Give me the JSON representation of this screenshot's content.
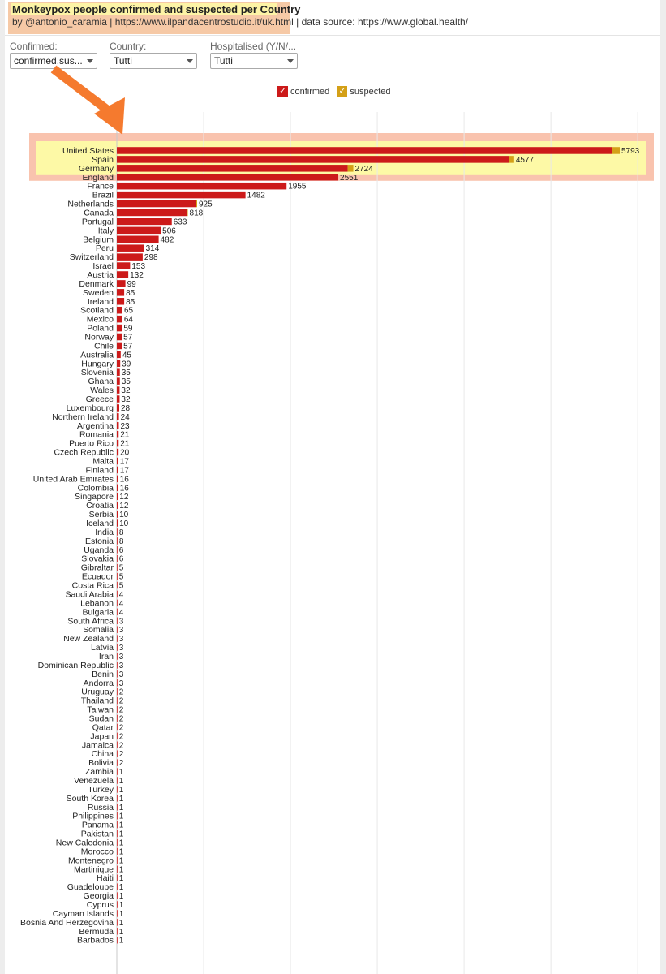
{
  "header": {
    "title": "Monkeypox people confirmed and suspected per Country",
    "subtitle": "by @antonio_caramia | https://www.ilpandacentrostudio.it/uk.html | data source: https://www.global.health/"
  },
  "filters": [
    {
      "label": "Confirmed:",
      "value": "confirmed,sus..."
    },
    {
      "label": "Country:",
      "value": "Tutti"
    },
    {
      "label": "Hospitalised (Y/N/...",
      "value": "Tutti"
    }
  ],
  "legend": [
    {
      "label": "confirmed",
      "color": "#cc1a1a",
      "checked": "✓"
    },
    {
      "label": "suspected",
      "color": "#d4a017",
      "checked": "✓"
    }
  ],
  "colors": {
    "confirmed": "#cc1a1a",
    "suspected": "#d4a017",
    "highlight": "#fdf9a6",
    "annotation": "#f57a2e"
  },
  "chart_data": {
    "type": "bar",
    "orientation": "horizontal",
    "stacked": true,
    "xlim": [
      0,
      6000
    ],
    "grid": true,
    "legend_position": "top",
    "highlighted_categories": [
      "United States",
      "Spain",
      "Germany"
    ],
    "categories": [
      "United States",
      "Spain",
      "Germany",
      "England",
      "France",
      "Brazil",
      "Netherlands",
      "Canada",
      "Portugal",
      "Italy",
      "Belgium",
      "Peru",
      "Switzerland",
      "Israel",
      "Austria",
      "Denmark",
      "Sweden",
      "Ireland",
      "Scotland",
      "Mexico",
      "Poland",
      "Norway",
      "Chile",
      "Australia",
      "Hungary",
      "Slovenia",
      "Ghana",
      "Wales",
      "Greece",
      "Luxembourg",
      "Northern Ireland",
      "Argentina",
      "Romania",
      "Puerto Rico",
      "Czech Republic",
      "Malta",
      "Finland",
      "United Arab Emirates",
      "Colombia",
      "Singapore",
      "Croatia",
      "Serbia",
      "Iceland",
      "India",
      "Estonia",
      "Uganda",
      "Slovakia",
      "Gibraltar",
      "Ecuador",
      "Costa Rica",
      "Saudi Arabia",
      "Lebanon",
      "Bulgaria",
      "South Africa",
      "Somalia",
      "New Zealand",
      "Latvia",
      "Iran",
      "Dominican Republic",
      "Benin",
      "Andorra",
      "Uruguay",
      "Thailand",
      "Taiwan",
      "Sudan",
      "Qatar",
      "Japan",
      "Jamaica",
      "China",
      "Bolivia",
      "Zambia",
      "Venezuela",
      "Turkey",
      "South Korea",
      "Russia",
      "Philippines",
      "Panama",
      "Pakistan",
      "New Caledonia",
      "Morocco",
      "Montenegro",
      "Martinique",
      "Haiti",
      "Guadeloupe",
      "Georgia",
      "Cyprus",
      "Cayman Islands",
      "Bosnia And Herzegovina",
      "Bermuda",
      "Barbados"
    ],
    "values": [
      5793,
      4577,
      2724,
      2551,
      1955,
      1482,
      925,
      818,
      633,
      506,
      482,
      314,
      298,
      153,
      132,
      99,
      85,
      85,
      65,
      64,
      59,
      57,
      57,
      45,
      39,
      35,
      35,
      32,
      32,
      28,
      24,
      23,
      21,
      21,
      20,
      17,
      17,
      16,
      16,
      12,
      12,
      10,
      10,
      8,
      8,
      6,
      6,
      5,
      5,
      5,
      4,
      4,
      4,
      3,
      3,
      3,
      3,
      3,
      3,
      3,
      3,
      2,
      2,
      2,
      2,
      2,
      2,
      2,
      2,
      2,
      1,
      1,
      1,
      1,
      1,
      1,
      1,
      1,
      1,
      1,
      1,
      1,
      1,
      1,
      1,
      1,
      1,
      1,
      1,
      1
    ],
    "series": [
      {
        "name": "confirmed",
        "values": [
          5707,
          4520,
          2659,
          2551,
          1955,
          1482,
          913,
          805,
          633,
          506,
          482,
          314,
          298,
          153,
          132,
          99,
          85,
          85,
          65,
          64,
          59,
          57,
          57,
          45,
          39,
          35,
          35,
          32,
          32,
          28,
          24,
          23,
          21,
          21,
          20,
          17,
          17,
          16,
          16,
          12,
          12,
          10,
          10,
          8,
          8,
          6,
          6,
          5,
          5,
          5,
          4,
          4,
          4,
          3,
          3,
          3,
          3,
          3,
          3,
          3,
          3,
          2,
          2,
          2,
          2,
          2,
          2,
          2,
          2,
          2,
          1,
          1,
          1,
          1,
          1,
          1,
          1,
          1,
          1,
          1,
          1,
          1,
          1,
          1,
          1,
          1,
          1,
          1,
          1,
          1
        ]
      },
      {
        "name": "suspected",
        "values": [
          86,
          57,
          65,
          0,
          0,
          0,
          12,
          13,
          0,
          0,
          0,
          0,
          0,
          0,
          0,
          0,
          0,
          0,
          0,
          0,
          0,
          0,
          0,
          0,
          0,
          0,
          0,
          0,
          0,
          0,
          0,
          0,
          0,
          0,
          0,
          0,
          0,
          0,
          0,
          0,
          0,
          0,
          0,
          0,
          0,
          0,
          0,
          0,
          0,
          0,
          0,
          0,
          0,
          0,
          0,
          0,
          0,
          0,
          0,
          0,
          0,
          0,
          0,
          0,
          0,
          0,
          0,
          0,
          0,
          0,
          0,
          0,
          0,
          0,
          0,
          0,
          0,
          0,
          0,
          0,
          0,
          0,
          0,
          0,
          0,
          0,
          0,
          0,
          0,
          0
        ]
      }
    ],
    "title": "",
    "xlabel": "",
    "ylabel": ""
  }
}
